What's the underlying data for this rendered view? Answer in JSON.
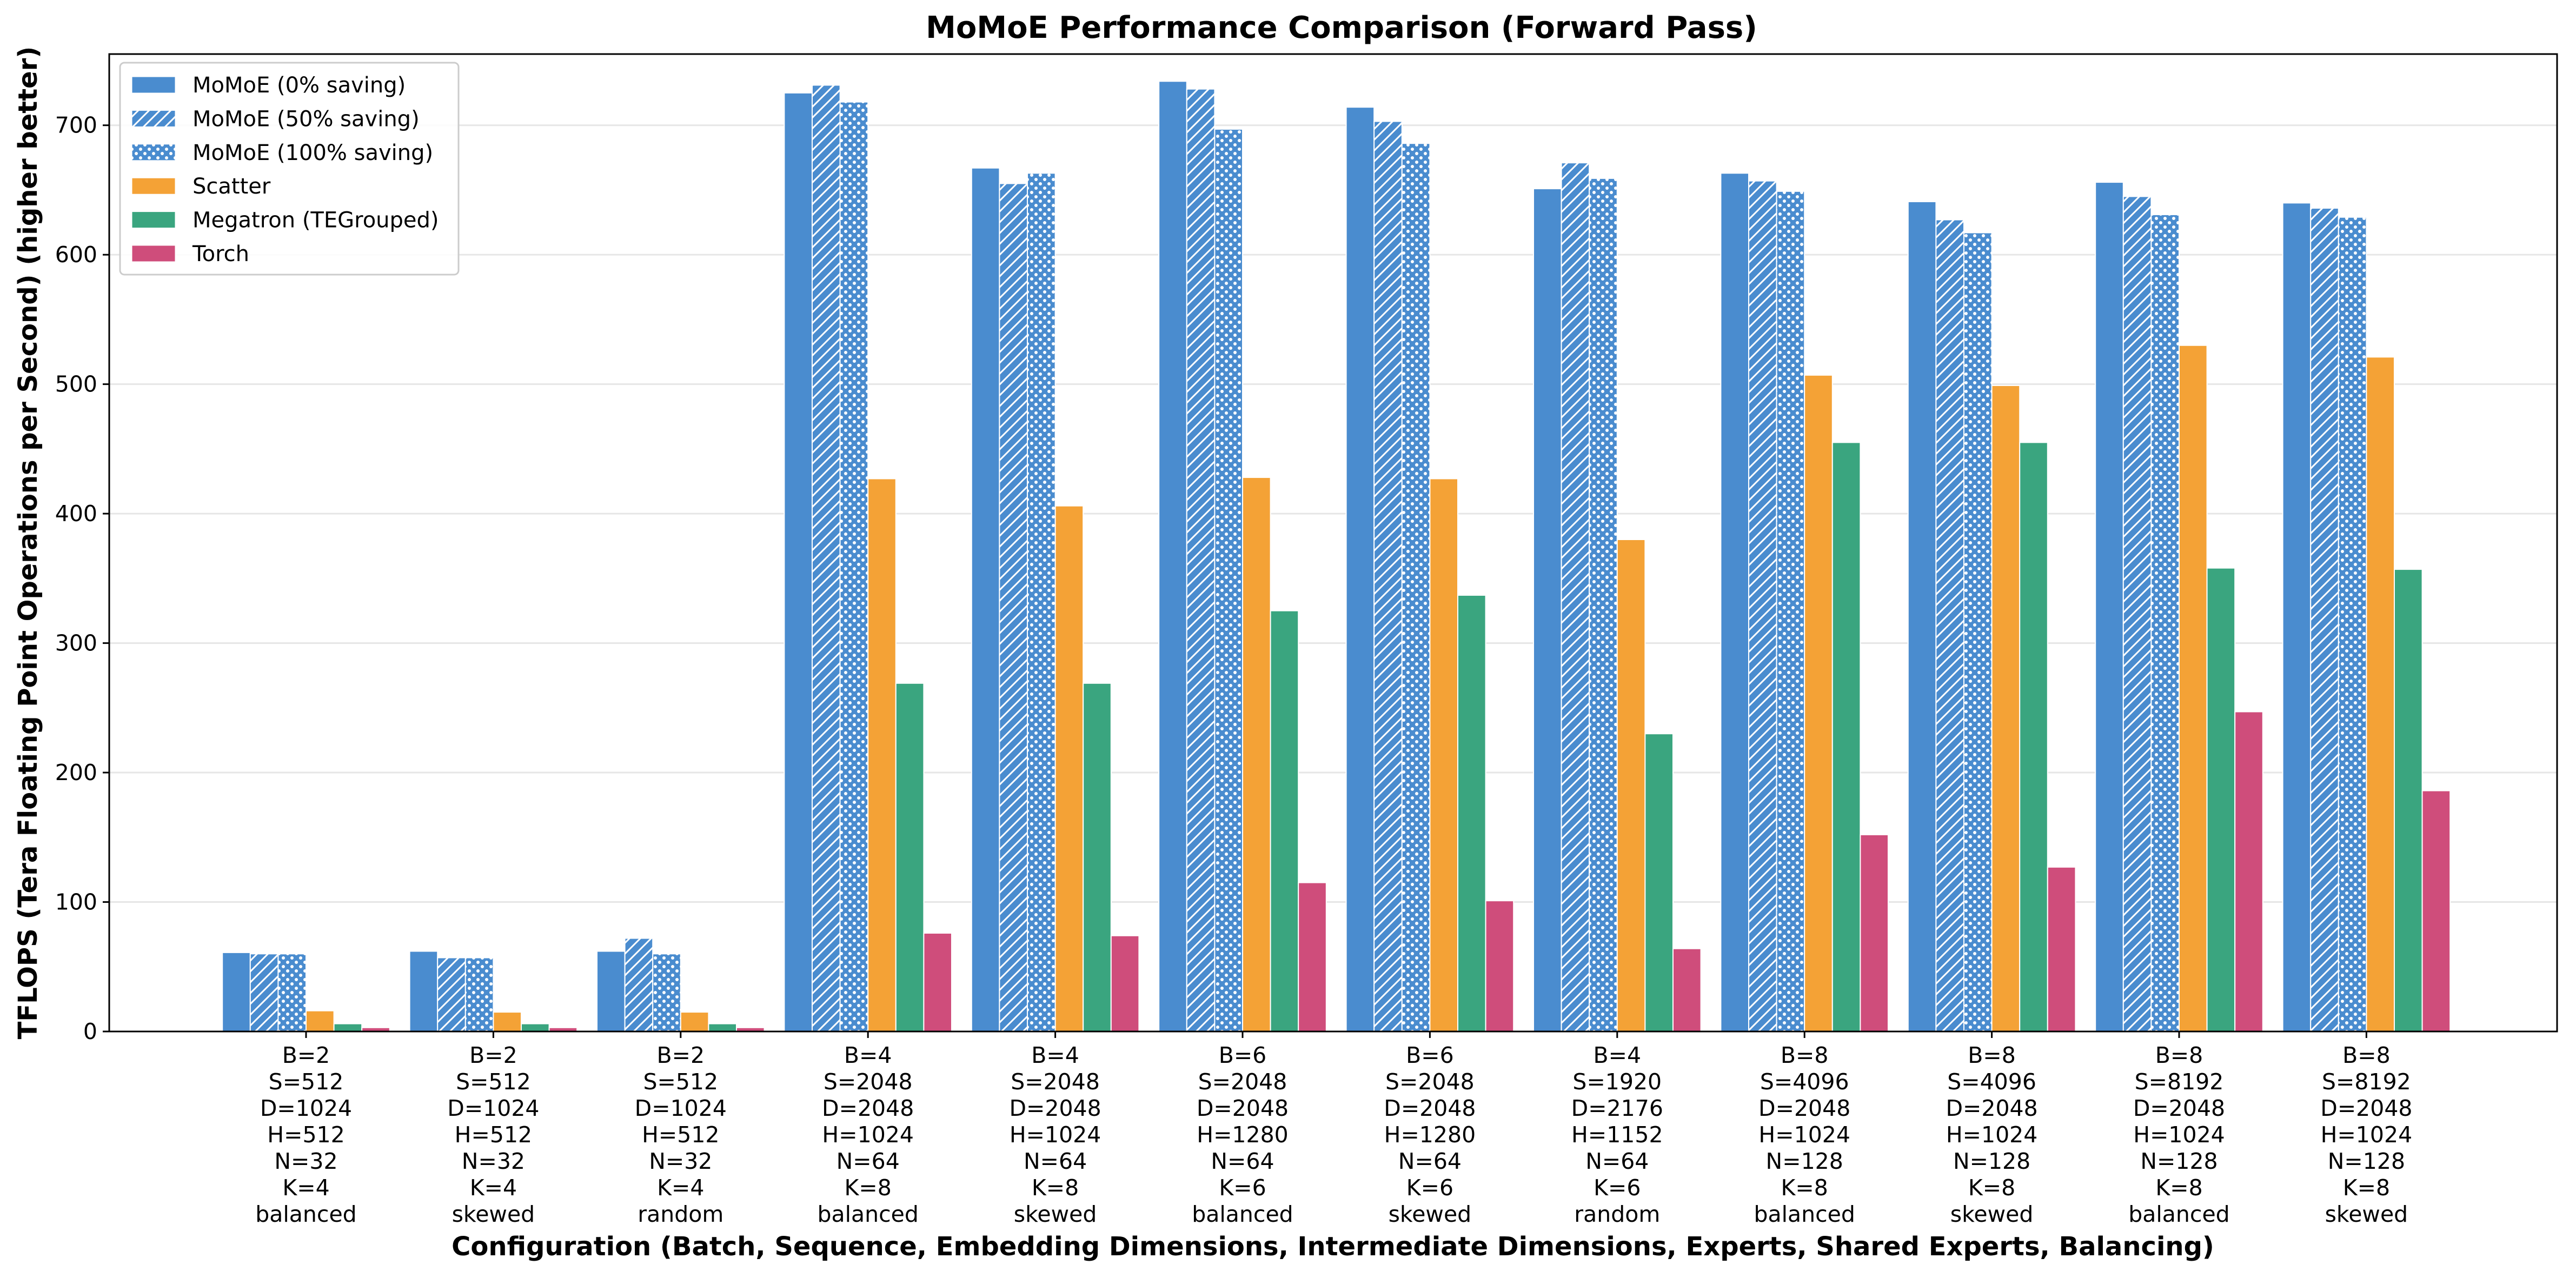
{
  "chart_data": {
    "type": "bar",
    "title": "MoMoE Performance Comparison (Forward Pass)",
    "xlabel": "Configuration (Batch, Sequence, Embedding Dimensions, Intermediate Dimensions, Experts, Shared Experts, Balancing)",
    "ylabel": "TFLOPS (Tera Floating Point Operations per Second) (higher better)",
    "ylim": [
      0,
      755
    ],
    "yticks": [
      0,
      100,
      200,
      300,
      400,
      500,
      600,
      700
    ],
    "grid": "horizontal",
    "legend_position": "top-left",
    "categories": [
      [
        "B=2",
        "S=512",
        "D=1024",
        "H=512",
        "N=32",
        "K=4",
        "balanced"
      ],
      [
        "B=2",
        "S=512",
        "D=1024",
        "H=512",
        "N=32",
        "K=4",
        "skewed"
      ],
      [
        "B=2",
        "S=512",
        "D=1024",
        "H=512",
        "N=32",
        "K=4",
        "random"
      ],
      [
        "B=4",
        "S=2048",
        "D=2048",
        "H=1024",
        "N=64",
        "K=8",
        "balanced"
      ],
      [
        "B=4",
        "S=2048",
        "D=2048",
        "H=1024",
        "N=64",
        "K=8",
        "skewed"
      ],
      [
        "B=6",
        "S=2048",
        "D=2048",
        "H=1280",
        "N=64",
        "K=6",
        "balanced"
      ],
      [
        "B=6",
        "S=2048",
        "D=2048",
        "H=1280",
        "N=64",
        "K=6",
        "skewed"
      ],
      [
        "B=4",
        "S=1920",
        "D=2176",
        "H=1152",
        "N=64",
        "K=6",
        "random"
      ],
      [
        "B=8",
        "S=4096",
        "D=2048",
        "H=1024",
        "N=128",
        "K=8",
        "balanced"
      ],
      [
        "B=8",
        "S=4096",
        "D=2048",
        "H=1024",
        "N=128",
        "K=8",
        "skewed"
      ],
      [
        "B=8",
        "S=8192",
        "D=2048",
        "H=1024",
        "N=128",
        "K=8",
        "balanced"
      ],
      [
        "B=8",
        "S=8192",
        "D=2048",
        "H=1024",
        "N=128",
        "K=8",
        "skewed"
      ]
    ],
    "series": [
      {
        "name": "MoMoE (0% saving)",
        "color": "#4a8ccf",
        "pattern": "solid",
        "values": [
          61,
          62,
          62,
          725,
          667,
          734,
          714,
          651,
          663,
          641,
          656,
          640
        ]
      },
      {
        "name": "MoMoE (50% saving)",
        "color": "#4a8ccf",
        "pattern": "hatch",
        "values": [
          60,
          57,
          72,
          731,
          655,
          728,
          703,
          671,
          657,
          627,
          645,
          636
        ]
      },
      {
        "name": "MoMoE (100% saving)",
        "color": "#4a8ccf",
        "pattern": "dots",
        "values": [
          60,
          57,
          60,
          718,
          663,
          697,
          686,
          659,
          649,
          617,
          631,
          629
        ]
      },
      {
        "name": "Scatter",
        "color": "#f4a236",
        "pattern": "solid",
        "values": [
          16,
          15,
          15,
          427,
          406,
          428,
          427,
          380,
          507,
          499,
          530,
          521
        ]
      },
      {
        "name": "Megatron (TEGrouped)",
        "color": "#3aa57f",
        "pattern": "solid",
        "values": [
          6,
          6,
          6,
          269,
          269,
          325,
          337,
          230,
          455,
          455,
          358,
          357
        ]
      },
      {
        "name": "Torch",
        "color": "#cf4d7b",
        "pattern": "solid",
        "values": [
          3,
          3,
          3,
          76,
          74,
          115,
          101,
          64,
          152,
          127,
          247,
          186
        ]
      }
    ]
  }
}
